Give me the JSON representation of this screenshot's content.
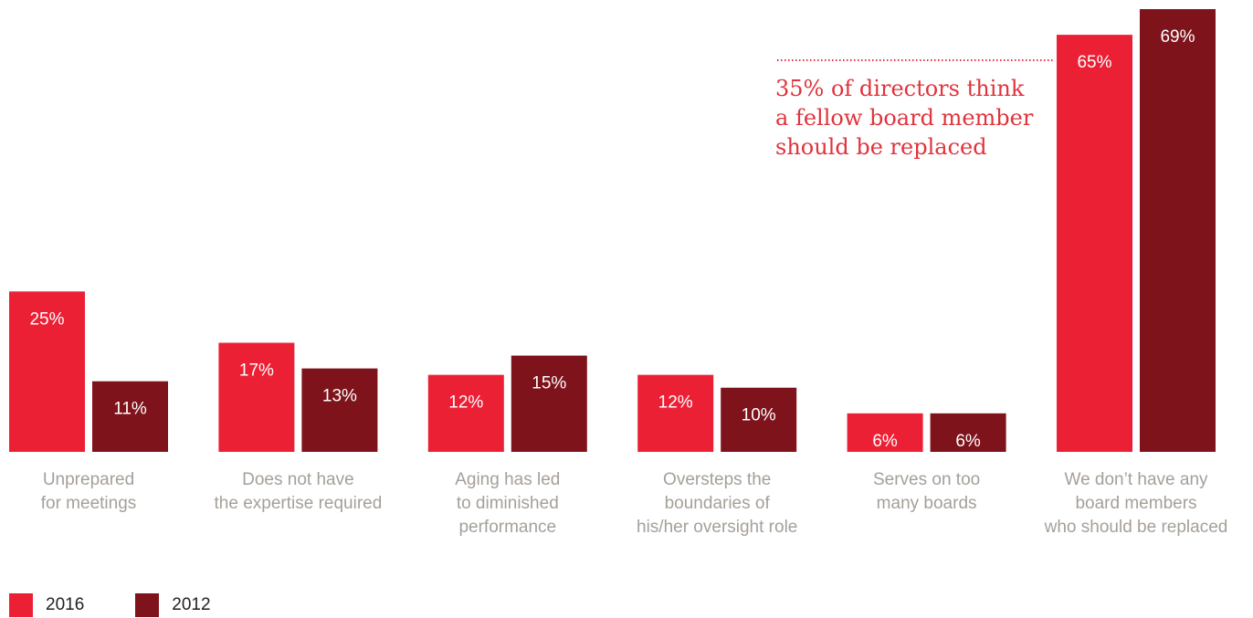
{
  "chart_data": {
    "type": "bar",
    "categories": [
      [
        "Unprepared",
        "for meetings"
      ],
      [
        "Does not have",
        "the expertise required"
      ],
      [
        "Aging has led",
        "to diminished",
        "performance"
      ],
      [
        "Oversteps the",
        "boundaries of",
        "his/her oversight role"
      ],
      [
        "Serves on too",
        "many boards"
      ],
      [
        "We don’t have any",
        "board members",
        "who should be replaced"
      ]
    ],
    "series": [
      {
        "name": "2016",
        "color": "#ec2035",
        "values": [
          25,
          17,
          12,
          12,
          6,
          65
        ],
        "labels": [
          "25%",
          "17%",
          "12%",
          "12%",
          "6%",
          "65%"
        ]
      },
      {
        "name": "2012",
        "color": "#7e131c",
        "values": [
          11,
          13,
          15,
          10,
          6,
          69
        ],
        "labels": [
          "11%",
          "13%",
          "15%",
          "10%",
          "6%",
          "69%"
        ]
      }
    ],
    "ylim": [
      0,
      69
    ],
    "grid": false,
    "legend": "bottom-left",
    "annotation": {
      "lines": [
        "35% of directors think",
        "a fellow board member",
        "should be replaced"
      ],
      "color": "#e0333c",
      "series": "2016",
      "category_index": 5
    },
    "category_label_color": "#a59f99"
  }
}
